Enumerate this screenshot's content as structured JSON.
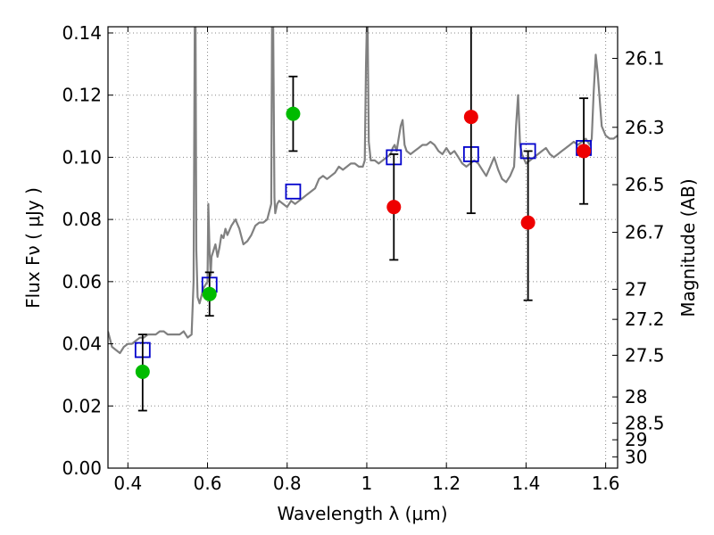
{
  "chart_data": {
    "type": "scatter",
    "xlabel": "Wavelength  λ (μm)",
    "ylabel": "Flux  Fν  ( μJy )",
    "ylabel_right": "Magnitude (AB)",
    "xlim": [
      0.35,
      1.63
    ],
    "ylim": [
      0.0,
      0.142
    ],
    "grid": true,
    "x_ticks": [
      {
        "value": 0.4,
        "label": "0.4"
      },
      {
        "value": 0.6,
        "label": "0.6"
      },
      {
        "value": 0.8,
        "label": "0.8"
      },
      {
        "value": 1.0,
        "label": "1"
      },
      {
        "value": 1.2,
        "label": "1.2"
      },
      {
        "value": 1.4,
        "label": "1.4"
      },
      {
        "value": 1.6,
        "label": "1.6"
      }
    ],
    "y_ticks": [
      {
        "value": 0.0,
        "label": "0.00"
      },
      {
        "value": 0.02,
        "label": "0.02"
      },
      {
        "value": 0.04,
        "label": "0.04"
      },
      {
        "value": 0.06,
        "label": "0.06"
      },
      {
        "value": 0.08,
        "label": "0.08"
      },
      {
        "value": 0.1,
        "label": "0.10"
      },
      {
        "value": 0.12,
        "label": "0.12"
      },
      {
        "value": 0.14,
        "label": "0.14"
      }
    ],
    "mag_ticks": [
      {
        "value": 26.1,
        "label": "26.1"
      },
      {
        "value": 26.3,
        "label": "26.3"
      },
      {
        "value": 26.5,
        "label": "26.5"
      },
      {
        "value": 26.7,
        "label": "26.7"
      },
      {
        "value": 27.0,
        "label": "27"
      },
      {
        "value": 27.2,
        "label": "27.2"
      },
      {
        "value": 27.5,
        "label": "27.5"
      },
      {
        "value": 28.0,
        "label": "28"
      },
      {
        "value": 28.5,
        "label": "28.5"
      },
      {
        "value": 29.0,
        "label": "29"
      },
      {
        "value": 30.0,
        "label": "30"
      }
    ],
    "colors": {
      "model_line": "#808080",
      "model_squares": "#0000cc",
      "green_points": "#00bb00",
      "red_points": "#ee0000",
      "error_bars": "#000000",
      "grid": "#888888"
    },
    "series": [
      {
        "type": "line",
        "x": [
          0.35,
          0.36,
          0.37,
          0.38,
          0.39,
          0.4,
          0.41,
          0.42,
          0.43,
          0.44,
          0.45,
          0.46,
          0.47,
          0.48,
          0.49,
          0.5,
          0.51,
          0.52,
          0.53,
          0.54,
          0.55,
          0.56,
          0.565,
          0.568,
          0.57,
          0.572,
          0.575,
          0.58,
          0.59,
          0.6,
          0.602,
          0.605,
          0.608,
          0.61,
          0.62,
          0.625,
          0.63,
          0.635,
          0.64,
          0.645,
          0.65,
          0.66,
          0.67,
          0.68,
          0.69,
          0.7,
          0.71,
          0.72,
          0.73,
          0.74,
          0.75,
          0.76,
          0.762,
          0.765,
          0.768,
          0.77,
          0.775,
          0.78,
          0.79,
          0.8,
          0.81,
          0.82,
          0.83,
          0.84,
          0.85,
          0.86,
          0.87,
          0.88,
          0.89,
          0.9,
          0.91,
          0.92,
          0.93,
          0.94,
          0.95,
          0.96,
          0.97,
          0.98,
          0.99,
          0.995,
          0.998,
          1.0,
          1.002,
          1.005,
          1.01,
          1.02,
          1.03,
          1.04,
          1.05,
          1.06,
          1.065,
          1.07,
          1.075,
          1.08,
          1.085,
          1.09,
          1.095,
          1.1,
          1.11,
          1.12,
          1.13,
          1.14,
          1.15,
          1.16,
          1.17,
          1.18,
          1.19,
          1.2,
          1.21,
          1.22,
          1.23,
          1.24,
          1.25,
          1.26,
          1.27,
          1.28,
          1.29,
          1.3,
          1.31,
          1.32,
          1.33,
          1.34,
          1.35,
          1.36,
          1.37,
          1.375,
          1.38,
          1.385,
          1.39,
          1.4,
          1.41,
          1.42,
          1.43,
          1.44,
          1.45,
          1.46,
          1.47,
          1.48,
          1.49,
          1.5,
          1.51,
          1.52,
          1.53,
          1.54,
          1.55,
          1.56,
          1.565,
          1.57,
          1.575,
          1.58,
          1.59,
          1.6,
          1.61,
          1.62,
          1.63
        ],
        "y": [
          0.044,
          0.039,
          0.038,
          0.037,
          0.039,
          0.04,
          0.04,
          0.041,
          0.042,
          0.042,
          0.043,
          0.043,
          0.043,
          0.044,
          0.044,
          0.043,
          0.043,
          0.043,
          0.043,
          0.044,
          0.042,
          0.043,
          0.06,
          0.142,
          0.142,
          0.07,
          0.055,
          0.053,
          0.058,
          0.06,
          0.085,
          0.07,
          0.062,
          0.068,
          0.072,
          0.068,
          0.071,
          0.075,
          0.074,
          0.077,
          0.075,
          0.078,
          0.08,
          0.077,
          0.072,
          0.073,
          0.075,
          0.078,
          0.079,
          0.079,
          0.08,
          0.085,
          0.142,
          0.142,
          0.087,
          0.082,
          0.085,
          0.086,
          0.085,
          0.084,
          0.086,
          0.085,
          0.086,
          0.087,
          0.088,
          0.089,
          0.09,
          0.093,
          0.094,
          0.093,
          0.094,
          0.095,
          0.097,
          0.096,
          0.097,
          0.098,
          0.098,
          0.097,
          0.097,
          0.099,
          0.13,
          0.142,
          0.142,
          0.105,
          0.099,
          0.099,
          0.098,
          0.099,
          0.1,
          0.101,
          0.103,
          0.104,
          0.102,
          0.106,
          0.11,
          0.112,
          0.104,
          0.102,
          0.101,
          0.102,
          0.103,
          0.104,
          0.104,
          0.105,
          0.104,
          0.102,
          0.101,
          0.103,
          0.101,
          0.102,
          0.1,
          0.098,
          0.097,
          0.098,
          0.099,
          0.098,
          0.096,
          0.094,
          0.097,
          0.1,
          0.096,
          0.093,
          0.092,
          0.094,
          0.097,
          0.11,
          0.12,
          0.104,
          0.101,
          0.098,
          0.099,
          0.1,
          0.101,
          0.102,
          0.103,
          0.101,
          0.1,
          0.101,
          0.102,
          0.103,
          0.104,
          0.105,
          0.104,
          0.105,
          0.106,
          0.104,
          0.106,
          0.121,
          0.133,
          0.127,
          0.11,
          0.107,
          0.106,
          0.106,
          0.107
        ]
      },
      {
        "type": "square",
        "x": [
          0.437,
          0.605,
          0.815,
          1.068,
          1.262,
          1.405,
          1.545
        ],
        "y": [
          0.038,
          0.059,
          0.089,
          0.1,
          0.101,
          0.102,
          0.103
        ]
      },
      {
        "type": "circle",
        "x": [
          0.437,
          0.605,
          0.815
        ],
        "y": [
          0.031,
          0.056,
          0.114
        ],
        "yerr_low": [
          0.0185,
          0.049,
          0.102
        ],
        "yerr_high": [
          0.043,
          0.063,
          0.126
        ]
      },
      {
        "type": "circle",
        "x": [
          1.068,
          1.262,
          1.405,
          1.545
        ],
        "y": [
          0.084,
          0.113,
          0.079,
          0.102
        ],
        "yerr_low": [
          0.067,
          0.082,
          0.054,
          0.085
        ],
        "yerr_high": [
          0.101,
          0.142,
          0.102,
          0.119
        ]
      }
    ]
  }
}
